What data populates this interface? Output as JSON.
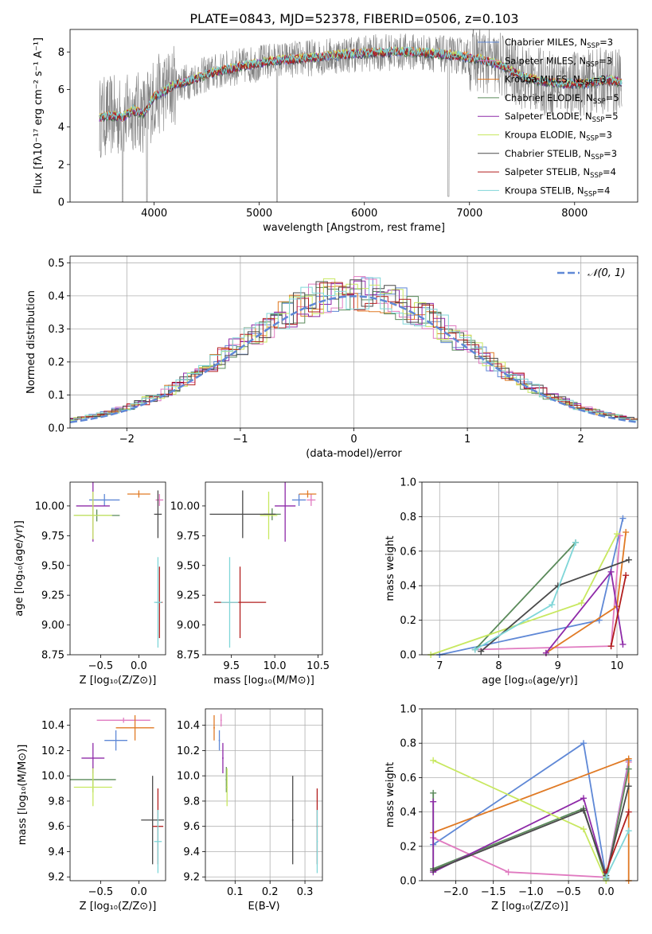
{
  "title": "PLATE=0843, MJD=52378, FIBERID=0506, z=0.103",
  "colors": {
    "Chabrier MILES": "#5f88d6",
    "Salpeter MILES": "#e07ac0",
    "Kroupa MILES": "#e07a25",
    "Chabrier ELODIE": "#5a8a5a",
    "Salpeter ELODIE": "#8e2aa8",
    "Kroupa ELODIE": "#c8e860",
    "Chabrier STELIB": "#4a4a4a",
    "Salpeter STELIB": "#b21e1e",
    "Kroupa STELIB": "#7fd6d8",
    "data": "#808080",
    "gauss": "#5f88d6"
  },
  "chart_data": [
    {
      "id": "spectrum",
      "type": "line",
      "xlabel": "wavelength [Angstrom, rest frame]",
      "ylabel": "Flux [fλ10⁻¹⁷ erg cm⁻² s⁻¹ A⁻¹]",
      "xlim": [
        3200,
        8600
      ],
      "ylim": [
        0,
        9.2
      ],
      "xticks": [
        4000,
        5000,
        6000,
        7000,
        8000
      ],
      "yticks": [
        0,
        2,
        4,
        6,
        8
      ],
      "grid": false,
      "legend_position": "top-right",
      "legend": [
        {
          "name": "Chabrier MILES",
          "base": "Chabrier MILES, N",
          "sub": "SSP",
          "tail": "=3"
        },
        {
          "name": "Salpeter MILES",
          "base": "Salpeter MILES, N",
          "sub": "SSP",
          "tail": "=3"
        },
        {
          "name": "Kroupa MILES",
          "base": "Kroupa MILES, N",
          "sub": "SSP",
          "tail": "=3"
        },
        {
          "name": "Chabrier ELODIE",
          "base": "Chabrier ELODIE, N",
          "sub": "SSP",
          "tail": "=5"
        },
        {
          "name": "Salpeter ELODIE",
          "base": "Salpeter ELODIE, N",
          "sub": "SSP",
          "tail": "=5"
        },
        {
          "name": "Kroupa ELODIE",
          "base": "Kroupa ELODIE, N",
          "sub": "SSP",
          "tail": "=3"
        },
        {
          "name": "Chabrier STELIB",
          "base": "Chabrier STELIB, N",
          "sub": "SSP",
          "tail": "=3"
        },
        {
          "name": "Salpeter STELIB",
          "base": "Salpeter STELIB, N",
          "sub": "SSP",
          "tail": "=4"
        },
        {
          "name": "Kroupa STELIB",
          "base": "Kroupa STELIB, N",
          "sub": "SSP",
          "tail": "=4"
        }
      ],
      "continuum": [
        [
          3480,
          4.5
        ],
        [
          3600,
          4.6
        ],
        [
          3700,
          4.5
        ],
        [
          3800,
          4.9
        ],
        [
          3900,
          4.7
        ],
        [
          4000,
          5.6
        ],
        [
          4100,
          5.9
        ],
        [
          4200,
          6.3
        ],
        [
          4300,
          6.4
        ],
        [
          4500,
          6.8
        ],
        [
          4700,
          7.1
        ],
        [
          4900,
          7.3
        ],
        [
          5100,
          7.5
        ],
        [
          5300,
          7.6
        ],
        [
          5500,
          7.7
        ],
        [
          5700,
          7.8
        ],
        [
          5900,
          7.9
        ],
        [
          6100,
          7.95
        ],
        [
          6300,
          8.0
        ],
        [
          6500,
          8.0
        ],
        [
          6700,
          7.9
        ],
        [
          6900,
          7.8
        ],
        [
          7100,
          7.6
        ],
        [
          7300,
          7.3
        ],
        [
          7500,
          6.7
        ],
        [
          7700,
          6.4
        ],
        [
          7900,
          6.3
        ],
        [
          8100,
          6.3
        ],
        [
          8300,
          6.5
        ],
        [
          8450,
          6.4
        ]
      ],
      "dips": [
        [
          3700,
          0
        ],
        [
          3930,
          0
        ],
        [
          5170,
          0
        ],
        [
          6800,
          0.3
        ]
      ]
    },
    {
      "id": "residuals",
      "type": "line",
      "xlabel": "(data-model)/error",
      "ylabel": "Normed distribution",
      "xlim": [
        -2.5,
        2.5
      ],
      "ylim": [
        0,
        0.52
      ],
      "xticks": [
        -2,
        -1,
        0,
        1,
        2
      ],
      "yticks": [
        0.0,
        0.1,
        0.2,
        0.3,
        0.4,
        0.5
      ],
      "grid": true,
      "legend_position": "top-right",
      "gauss_label": "𝒩(0, 1)",
      "bin_width": 0.1
    },
    {
      "id": "age-vs-Z",
      "type": "scatter",
      "xlabel": "Z [log₁₀(Z/Z⊙)]",
      "ylabel": "age  [log₁₀(age/yr)]",
      "xlim": [
        -0.9,
        0.35
      ],
      "ylim": [
        8.75,
        10.2
      ],
      "xticks": [
        -0.5,
        0.0
      ],
      "yticks": [
        8.75,
        9.0,
        9.25,
        9.5,
        9.75,
        10.0
      ],
      "grid": false,
      "points": [
        {
          "s": "Chabrier MILES",
          "x": -0.45,
          "xe": 0.2,
          "y": 10.05,
          "ye": 0.05
        },
        {
          "s": "Salpeter MILES",
          "x": 0.27,
          "xe": 0.05,
          "y": 10.05,
          "ye": 0.05
        },
        {
          "s": "Kroupa MILES",
          "x": 0.0,
          "xe": 0.15,
          "y": 10.1,
          "ye": 0.03
        },
        {
          "s": "Chabrier ELODIE",
          "x": -0.55,
          "xe": 0.3,
          "y": 9.92,
          "ye": 0.05
        },
        {
          "s": "Salpeter ELODIE",
          "x": -0.6,
          "xe": 0.22,
          "y": 10.0,
          "ye": 0.3
        },
        {
          "s": "Kroupa ELODIE",
          "x": -0.6,
          "xe": 0.25,
          "y": 9.92,
          "ye": 0.2
        },
        {
          "s": "Chabrier STELIB",
          "x": 0.25,
          "xe": 0.05,
          "y": 9.93,
          "ye": 0.2
        },
        {
          "s": "Salpeter STELIB",
          "x": 0.27,
          "xe": 0.04,
          "y": 9.19,
          "ye": 0.3
        },
        {
          "s": "Kroupa STELIB",
          "x": 0.25,
          "xe": 0.05,
          "y": 9.19,
          "ye": 0.38
        }
      ]
    },
    {
      "id": "age-vs-mass",
      "type": "scatter",
      "xlabel": "mass [log₁₀(M/M⊙)]",
      "ylabel": "",
      "xlim": [
        9.2,
        10.55
      ],
      "ylim": [
        8.75,
        10.2
      ],
      "xticks": [
        9.5,
        10.0,
        10.5
      ],
      "yticks": [
        8.75,
        9.0,
        9.25,
        9.5,
        9.75,
        10.0
      ],
      "grid": false,
      "points": [
        {
          "s": "Chabrier MILES",
          "x": 10.28,
          "xe": 0.08,
          "y": 10.05,
          "ye": 0.05
        },
        {
          "s": "Salpeter MILES",
          "x": 10.42,
          "xe": 0.05,
          "y": 10.05,
          "ye": 0.05
        },
        {
          "s": "Kroupa MILES",
          "x": 10.38,
          "xe": 0.1,
          "y": 10.1,
          "ye": 0.03
        },
        {
          "s": "Chabrier ELODIE",
          "x": 9.97,
          "xe": 0.1,
          "y": 9.93,
          "ye": 0.05
        },
        {
          "s": "Salpeter ELODIE",
          "x": 10.12,
          "xe": 0.12,
          "y": 10.0,
          "ye": 0.3
        },
        {
          "s": "Kroupa ELODIE",
          "x": 9.93,
          "xe": 0.1,
          "y": 9.92,
          "ye": 0.2
        },
        {
          "s": "Chabrier STELIB",
          "x": 9.63,
          "xe": 0.38,
          "y": 9.93,
          "ye": 0.2
        },
        {
          "s": "Salpeter STELIB",
          "x": 9.6,
          "xe": 0.3,
          "y": 9.19,
          "ye": 0.3
        },
        {
          "s": "Kroupa STELIB",
          "x": 9.48,
          "xe": 0.1,
          "y": 9.19,
          "ye": 0.38
        }
      ]
    },
    {
      "id": "weight-vs-age",
      "type": "line",
      "xlabel": "age  [log₁₀(age/yr)]",
      "ylabel": "mass weight",
      "xlim": [
        6.7,
        10.35
      ],
      "ylim": [
        0,
        1.0
      ],
      "xticks": [
        7,
        8,
        9,
        10
      ],
      "yticks": [
        0.0,
        0.2,
        0.4,
        0.6,
        0.8,
        1.0
      ],
      "grid": true,
      "series": [
        {
          "s": "Chabrier MILES",
          "x": [
            7.0,
            9.7,
            10.1
          ],
          "y": [
            0.0,
            0.2,
            0.79
          ]
        },
        {
          "s": "Salpeter MILES",
          "x": [
            7.6,
            9.9,
            10.05
          ],
          "y": [
            0.03,
            0.05,
            0.69
          ]
        },
        {
          "s": "Kroupa MILES",
          "x": [
            8.8,
            10.0,
            10.15
          ],
          "y": [
            0.01,
            0.28,
            0.71
          ]
        },
        {
          "s": "Chabrier ELODIE",
          "x": [
            7.6,
            9.3
          ],
          "y": [
            0.03,
            0.65
          ]
        },
        {
          "s": "Salpeter ELODIE",
          "x": [
            8.8,
            9.9,
            10.1
          ],
          "y": [
            0.01,
            0.48,
            0.06
          ]
        },
        {
          "s": "Kroupa ELODIE",
          "x": [
            6.85,
            9.4,
            10.0
          ],
          "y": [
            0.0,
            0.3,
            0.7
          ]
        },
        {
          "s": "Chabrier STELIB",
          "x": [
            7.7,
            9.0,
            10.2
          ],
          "y": [
            0.02,
            0.4,
            0.55
          ]
        },
        {
          "s": "Salpeter STELIB",
          "x": [
            9.9,
            10.15
          ],
          "y": [
            0.05,
            0.46
          ]
        },
        {
          "s": "Kroupa STELIB",
          "x": [
            7.6,
            8.9,
            9.3
          ],
          "y": [
            0.03,
            0.29,
            0.65
          ]
        }
      ]
    },
    {
      "id": "mass-vs-Z",
      "type": "scatter",
      "xlabel": "Z [log₁₀(Z/Z⊙)]",
      "ylabel": "mass [log₁₀(M/M⊙)]",
      "xlim": [
        -0.9,
        0.35
      ],
      "ylim": [
        9.17,
        10.53
      ],
      "xticks": [
        -0.5,
        0.0
      ],
      "yticks": [
        9.2,
        9.4,
        9.6,
        9.8,
        10.0,
        10.2,
        10.4
      ],
      "grid": false,
      "points": [
        {
          "s": "Chabrier MILES",
          "x": -0.3,
          "xe": 0.15,
          "y": 10.28,
          "ye": 0.08
        },
        {
          "s": "Salpeter MILES",
          "x": -0.2,
          "xe": 0.35,
          "y": 10.44,
          "ye": 0.02
        },
        {
          "s": "Kroupa MILES",
          "x": -0.05,
          "xe": 0.25,
          "y": 10.38,
          "ye": 0.1
        },
        {
          "s": "Chabrier ELODIE",
          "x": -0.6,
          "xe": 0.3,
          "y": 9.97,
          "ye": 0.1
        },
        {
          "s": "Salpeter ELODIE",
          "x": -0.6,
          "xe": 0.15,
          "y": 10.14,
          "ye": 0.12
        },
        {
          "s": "Kroupa ELODIE",
          "x": -0.6,
          "xe": 0.25,
          "y": 9.91,
          "ye": 0.15
        },
        {
          "s": "Chabrier STELIB",
          "x": 0.18,
          "xe": 0.15,
          "y": 9.65,
          "ye": 0.35
        },
        {
          "s": "Salpeter STELIB",
          "x": 0.25,
          "xe": 0.07,
          "y": 9.6,
          "ye": 0.3
        },
        {
          "s": "Kroupa STELIB",
          "x": 0.25,
          "xe": 0.05,
          "y": 9.48,
          "ye": 0.25
        }
      ]
    },
    {
      "id": "mass-vs-ebv",
      "type": "scatter",
      "xlabel": "E(B-V)",
      "ylabel": "",
      "xlim": [
        0.015,
        0.35
      ],
      "ylim": [
        9.17,
        10.53
      ],
      "xticks": [
        0.1,
        0.2,
        0.3
      ],
      "yticks": [
        9.2,
        9.4,
        9.6,
        9.8,
        10.0,
        10.2,
        10.4
      ],
      "grid": true,
      "points": [
        {
          "s": "Chabrier MILES",
          "x": 0.055,
          "xe": 0.002,
          "y": 10.28,
          "ye": 0.08
        },
        {
          "s": "Salpeter MILES",
          "x": 0.06,
          "xe": 0.002,
          "y": 10.44,
          "ye": 0.05
        },
        {
          "s": "Kroupa MILES",
          "x": 0.04,
          "xe": 0.002,
          "y": 10.38,
          "ye": 0.1
        },
        {
          "s": "Chabrier ELODIE",
          "x": 0.075,
          "xe": 0.002,
          "y": 9.97,
          "ye": 0.1
        },
        {
          "s": "Salpeter ELODIE",
          "x": 0.065,
          "xe": 0.002,
          "y": 10.14,
          "ye": 0.12
        },
        {
          "s": "Kroupa ELODIE",
          "x": 0.077,
          "xe": 0.002,
          "y": 9.91,
          "ye": 0.15
        },
        {
          "s": "Chabrier STELIB",
          "x": 0.265,
          "xe": 0.002,
          "y": 9.65,
          "ye": 0.35
        },
        {
          "s": "Salpeter STELIB",
          "x": 0.335,
          "xe": 0.002,
          "y": 9.6,
          "ye": 0.3
        },
        {
          "s": "Kroupa STELIB",
          "x": 0.335,
          "xe": 0.002,
          "y": 9.48,
          "ye": 0.25
        }
      ]
    },
    {
      "id": "weight-vs-Z",
      "type": "line",
      "xlabel": "Z [log₁₀(Z/Z⊙)]",
      "ylabel": "mass weight",
      "xlim": [
        -2.45,
        0.42
      ],
      "ylim": [
        0,
        1.0
      ],
      "xticks": [
        -2.0,
        -1.5,
        -1.0,
        -0.5,
        0.0
      ],
      "yticks": [
        0.0,
        0.2,
        0.4,
        0.6,
        0.8,
        1.0
      ],
      "grid": true,
      "series": [
        {
          "s": "Chabrier MILES",
          "x": [
            -2.3,
            -0.3,
            0.0,
            0.3
          ],
          "y": [
            0.21,
            0.8,
            0.02,
            0.7
          ]
        },
        {
          "s": "Salpeter MILES",
          "x": [
            -2.3,
            -1.3,
            0.0,
            0.3
          ],
          "y": [
            0.25,
            0.05,
            0.02,
            0.69
          ]
        },
        {
          "s": "Kroupa MILES",
          "x": [
            -2.3,
            0.3,
            0.3
          ],
          "y": [
            0.28,
            0.71,
            0.0
          ]
        },
        {
          "s": "Chabrier ELODIE",
          "x": [
            -2.3,
            -2.3,
            -0.3,
            0.0,
            0.3
          ],
          "y": [
            0.51,
            0.07,
            0.42,
            0.01,
            0.65
          ]
        },
        {
          "s": "Salpeter ELODIE",
          "x": [
            -2.3,
            -2.3,
            -0.3,
            0.0
          ],
          "y": [
            0.46,
            0.05,
            0.48,
            0.02
          ]
        },
        {
          "s": "Kroupa ELODIE",
          "x": [
            -2.3,
            -0.3,
            0.0
          ],
          "y": [
            0.7,
            0.3,
            0.0
          ]
        },
        {
          "s": "Chabrier STELIB",
          "x": [
            -2.3,
            -0.3,
            0.0,
            0.3
          ],
          "y": [
            0.06,
            0.41,
            0.03,
            0.55
          ]
        },
        {
          "s": "Salpeter STELIB",
          "x": [
            0.0,
            0.3
          ],
          "y": [
            0.05,
            0.4
          ]
        },
        {
          "s": "Kroupa STELIB",
          "x": [
            0.0,
            0.3
          ],
          "y": [
            0.02,
            0.29
          ]
        }
      ]
    }
  ]
}
